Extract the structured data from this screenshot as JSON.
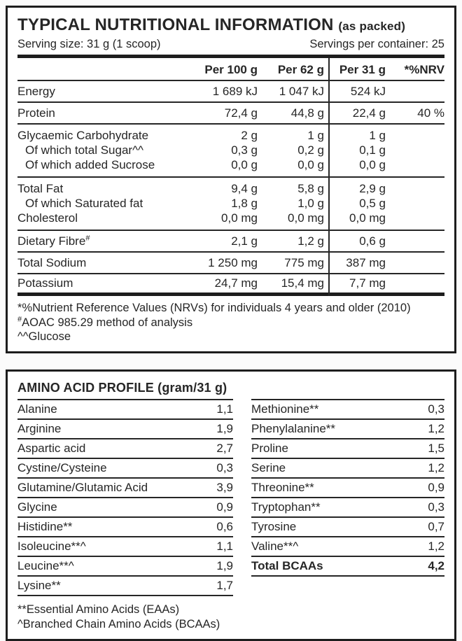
{
  "panel1": {
    "title": "TYPICAL NUTRITIONAL INFORMATION",
    "title_suffix": "(as packed)",
    "serving_size": "Serving size: 31 g (1 scoop)",
    "servings_per_container": "Servings per container: 25",
    "columns": [
      "Per 100 g",
      "Per 62 g",
      "Per 31 g",
      "*%NRV"
    ],
    "rows": [
      {
        "name": "Energy",
        "per100": "1 689 kJ",
        "per62": "1 047 kJ",
        "per31": "524 kJ",
        "nrv": ""
      },
      {
        "name": "Protein",
        "per100": "72,4 g",
        "per62": "44,8 g",
        "per31": "22,4 g",
        "nrv": "40 %"
      },
      {
        "name": "Glycaemic Carbohydrate",
        "per100": "2 g",
        "per62": "1 g",
        "per31": "1 g",
        "nrv": ""
      },
      {
        "name": "Of which total Sugar^^",
        "per100": "0,3 g",
        "per62": "0,2 g",
        "per31": "0,1 g",
        "nrv": ""
      },
      {
        "name": "Of which added Sucrose",
        "per100": "0,0 g",
        "per62": "0,0 g",
        "per31": "0,0 g",
        "nrv": ""
      },
      {
        "name": "Total Fat",
        "per100": "9,4 g",
        "per62": "5,8 g",
        "per31": "2,9 g",
        "nrv": ""
      },
      {
        "name": "Of which Saturated fat",
        "per100": "1,8 g",
        "per62": "1,0 g",
        "per31": "0,5 g",
        "nrv": ""
      },
      {
        "name": "Cholesterol",
        "per100": "0,0 mg",
        "per62": "0,0 mg",
        "per31": "0,0 mg",
        "nrv": ""
      },
      {
        "name": "Dietary Fibre",
        "name_sup": "#",
        "per100": "2,1 g",
        "per62": "1,2 g",
        "per31": "0,6 g",
        "nrv": ""
      },
      {
        "name": "Total Sodium",
        "per100": "1 250 mg",
        "per62": "775 mg",
        "per31": "387 mg",
        "nrv": ""
      },
      {
        "name": "Potassium",
        "per100": "24,7 mg",
        "per62": "15,4 mg",
        "per31": "7,7 mg",
        "nrv": ""
      }
    ],
    "footnotes": [
      {
        "sup": "",
        "text": "*%Nutrient Reference Values (NRVs) for individuals 4 years and older (2010)"
      },
      {
        "sup": "#",
        "text": "AOAC 985.29 method of analysis"
      },
      {
        "sup": "",
        "text": "^^Glucose"
      }
    ]
  },
  "panel2": {
    "title": "AMINO ACID PROFILE (gram/31 g)",
    "left_rows": [
      {
        "name": "Alanine",
        "value": "1,1"
      },
      {
        "name": "Arginine",
        "value": "1,9"
      },
      {
        "name": "Aspartic acid",
        "value": "2,7"
      },
      {
        "name": "Cystine/Cysteine",
        "value": "0,3"
      },
      {
        "name": "Glutamine/Glutamic Acid",
        "value": "3,9"
      },
      {
        "name": "Glycine",
        "value": "0,9"
      },
      {
        "name": "Histidine**",
        "value": "0,6"
      },
      {
        "name": "Isoleucine**^",
        "value": "1,1"
      },
      {
        "name": "Leucine**^",
        "value": "1,9"
      },
      {
        "name": "Lysine**",
        "value": "1,7"
      }
    ],
    "right_rows": [
      {
        "name": "Methionine**",
        "value": "0,3"
      },
      {
        "name": "Phenylalanine**",
        "value": "1,2"
      },
      {
        "name": "Proline",
        "value": "1,5"
      },
      {
        "name": "Serine",
        "value": "1,2"
      },
      {
        "name": "Threonine**",
        "value": "0,9"
      },
      {
        "name": "Tryptophan**",
        "value": "0,3"
      },
      {
        "name": "Tyrosine",
        "value": "0,7"
      },
      {
        "name": "Valine**^",
        "value": "1,2"
      },
      {
        "name": "Total BCAAs",
        "value": "4,2"
      }
    ],
    "footnotes": [
      "**Essential Amino Acids (EAAs)",
      "^Branched Chain Amino Acids (BCAAs)"
    ],
    "colors": {
      "border": "#1d1d1d",
      "text": "#262626",
      "background": "#ffffff"
    }
  }
}
